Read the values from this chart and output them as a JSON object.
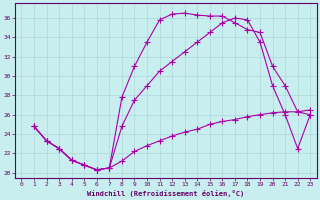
{
  "xlabel": "Windchill (Refroidissement éolien,°C)",
  "background_color": "#c8eef0",
  "grid_color": "#b0d8d8",
  "line_color": "#aa00aa",
  "xlim": [
    -0.5,
    23.5
  ],
  "ylim": [
    19.5,
    37.5
  ],
  "xticks": [
    0,
    1,
    2,
    3,
    4,
    5,
    6,
    7,
    8,
    9,
    10,
    11,
    12,
    13,
    14,
    15,
    16,
    17,
    18,
    19,
    20,
    21,
    22,
    23
  ],
  "yticks": [
    20,
    22,
    24,
    26,
    28,
    30,
    32,
    34,
    36
  ],
  "line1_x": [
    1,
    2,
    3,
    4,
    5,
    6,
    7,
    8,
    9,
    10,
    11,
    12,
    13,
    14,
    15,
    16,
    17,
    18,
    19,
    20,
    21,
    22,
    23
  ],
  "line1_y": [
    24.8,
    23.3,
    22.5,
    21.3,
    20.8,
    20.3,
    20.5,
    27.8,
    31.0,
    33.5,
    35.8,
    36.4,
    36.5,
    36.3,
    36.2,
    36.2,
    35.5,
    34.8,
    34.5,
    31.0,
    29.0,
    26.3,
    26.0
  ],
  "line2_x": [
    1,
    2,
    3,
    4,
    5,
    6,
    7,
    8,
    9,
    10,
    11,
    12,
    13,
    14,
    15,
    16,
    17,
    18,
    19,
    20,
    21,
    22,
    23
  ],
  "line2_y": [
    24.8,
    23.3,
    22.5,
    21.3,
    20.8,
    20.3,
    20.5,
    24.8,
    27.5,
    29.0,
    30.5,
    31.5,
    32.5,
    33.5,
    34.5,
    35.5,
    36.0,
    35.8,
    33.5,
    29.0,
    26.0,
    22.5,
    26.0
  ],
  "line3_x": [
    1,
    2,
    3,
    4,
    5,
    6,
    7,
    8,
    9,
    10,
    11,
    12,
    13,
    14,
    15,
    16,
    17,
    18,
    19,
    20,
    21,
    22,
    23
  ],
  "line3_y": [
    24.8,
    23.3,
    22.5,
    21.3,
    20.8,
    20.3,
    20.5,
    21.2,
    22.2,
    22.8,
    23.3,
    23.8,
    24.2,
    24.5,
    25.0,
    25.3,
    25.5,
    25.8,
    26.0,
    26.2,
    26.3,
    26.3,
    26.5
  ]
}
